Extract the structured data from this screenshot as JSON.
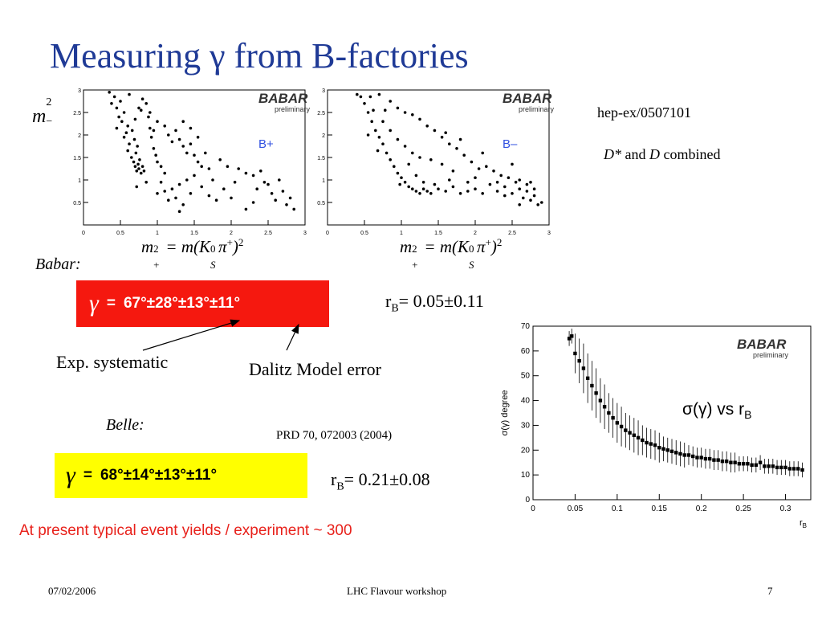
{
  "title": "Measuring γ from B-factories",
  "reference_babar": "hep-ex/0507101",
  "combined_note": {
    "d_star": "D*",
    "and": " and ",
    "d": "D",
    "rest": " combined"
  },
  "y_axis_label": {
    "m": "m",
    "sup": "2",
    "sub": "−"
  },
  "x_axis_formula": {
    "lhs": "m",
    "sup1": "2",
    "sub1": "+",
    "eq": " = m(",
    "k": "K",
    "ks_sup": "0",
    "ks_sub": "S",
    "pi": "π",
    "pi_sup": "+",
    "close": ")",
    "sup2": "2"
  },
  "babar": {
    "label": "Babar:",
    "gamma_symbol": "γ",
    "equals": "=",
    "result": "67°±28°±13°±11°",
    "rb_label": "r",
    "rb_sub": "B",
    "rb_value": "= 0.05±0.11",
    "box_color": "#f5180f"
  },
  "annotations": {
    "exp_systematic": "Exp. systematic",
    "dalitz_error": "Dalitz Model error"
  },
  "belle": {
    "label": "Belle:",
    "reference": "PRD 70, 072003 (2004)",
    "gamma_symbol": "γ",
    "equals": "=",
    "result": "68°±14°±13°±11°",
    "rb_label": "r",
    "rb_sub": "B",
    "rb_value": "= 0.21±0.08",
    "box_color": "#ffff00"
  },
  "yield_note": "At present typical event yields / experiment ~ 300",
  "footer": {
    "date": "07/02/2006",
    "venue": "LHC Flavour workshop",
    "page": "7"
  },
  "colors": {
    "title": "#1f3a96",
    "red_text": "#e8211b",
    "bplus_label": "#3050e0"
  },
  "chart_data": [
    {
      "type": "scatter",
      "logo": "BABAR",
      "logo_sub": "preliminary",
      "label": "B+",
      "xlim": [
        0,
        3
      ],
      "ylim": [
        0,
        3
      ],
      "xticks": [
        "0",
        "0.5",
        "1",
        "1.5",
        "2",
        "2.5",
        "3"
      ],
      "yticks": [
        "0.5",
        "1",
        "1.5",
        "2",
        "2.5",
        "3"
      ],
      "points": [
        [
          0.35,
          2.95
        ],
        [
          0.42,
          2.85
        ],
        [
          0.38,
          2.7
        ],
        [
          0.45,
          2.6
        ],
        [
          0.5,
          2.75
        ],
        [
          0.55,
          2.5
        ],
        [
          0.48,
          2.4
        ],
        [
          0.52,
          2.3
        ],
        [
          0.6,
          2.2
        ],
        [
          0.58,
          2.05
        ],
        [
          0.55,
          1.95
        ],
        [
          0.62,
          1.8
        ],
        [
          0.6,
          1.65
        ],
        [
          0.65,
          1.5
        ],
        [
          0.68,
          1.4
        ],
        [
          0.7,
          1.3
        ],
        [
          0.72,
          1.2
        ],
        [
          0.75,
          1.25
        ],
        [
          0.74,
          1.35
        ],
        [
          0.78,
          1.15
        ],
        [
          0.76,
          1.45
        ],
        [
          0.8,
          1.3
        ],
        [
          0.82,
          1.2
        ],
        [
          0.71,
          1.6
        ],
        [
          0.73,
          1.75
        ],
        [
          0.69,
          1.9
        ],
        [
          0.66,
          2.1
        ],
        [
          0.7,
          2.35
        ],
        [
          0.75,
          2.6
        ],
        [
          0.8,
          2.8
        ],
        [
          0.78,
          2.55
        ],
        [
          0.85,
          2.7
        ],
        [
          0.88,
          2.4
        ],
        [
          0.9,
          2.15
        ],
        [
          0.92,
          1.95
        ],
        [
          0.95,
          1.7
        ],
        [
          0.98,
          1.55
        ],
        [
          1.0,
          1.4
        ],
        [
          1.05,
          1.3
        ],
        [
          1.1,
          1.15
        ],
        [
          0.9,
          2.5
        ],
        [
          1.0,
          2.3
        ],
        [
          1.1,
          2.2
        ],
        [
          1.15,
          2.0
        ],
        [
          1.2,
          1.85
        ],
        [
          1.25,
          2.1
        ],
        [
          1.3,
          1.9
        ],
        [
          1.35,
          1.75
        ],
        [
          1.4,
          1.6
        ],
        [
          1.45,
          1.8
        ],
        [
          1.5,
          1.55
        ],
        [
          1.55,
          1.4
        ],
        [
          1.6,
          1.3
        ],
        [
          1.5,
          1.1
        ],
        [
          1.4,
          1.0
        ],
        [
          1.3,
          0.9
        ],
        [
          1.2,
          0.8
        ],
        [
          1.1,
          0.75
        ],
        [
          1.0,
          0.7
        ],
        [
          1.05,
          0.95
        ],
        [
          1.15,
          0.55
        ],
        [
          1.25,
          0.6
        ],
        [
          1.35,
          0.45
        ],
        [
          1.45,
          0.7
        ],
        [
          1.6,
          0.85
        ],
        [
          1.7,
          0.65
        ],
        [
          1.75,
          1.0
        ],
        [
          1.8,
          0.55
        ],
        [
          1.9,
          0.8
        ],
        [
          2.0,
          0.6
        ],
        [
          2.05,
          0.95
        ],
        [
          2.1,
          1.25
        ],
        [
          2.2,
          1.15
        ],
        [
          2.3,
          1.1
        ],
        [
          2.4,
          1.2
        ],
        [
          2.5,
          0.9
        ],
        [
          2.55,
          0.7
        ],
        [
          2.6,
          0.55
        ],
        [
          2.7,
          0.75
        ],
        [
          2.75,
          0.45
        ],
        [
          2.8,
          0.6
        ],
        [
          2.85,
          0.35
        ],
        [
          2.2,
          0.35
        ],
        [
          2.3,
          0.5
        ],
        [
          1.95,
          1.3
        ],
        [
          1.85,
          1.45
        ],
        [
          1.65,
          1.6
        ],
        [
          1.55,
          1.95
        ],
        [
          1.45,
          2.15
        ],
        [
          1.35,
          2.3
        ],
        [
          0.95,
          2.1
        ],
        [
          1.3,
          0.3
        ],
        [
          0.85,
          0.95
        ],
        [
          0.72,
          0.85
        ],
        [
          0.62,
          2.9
        ],
        [
          0.45,
          2.15
        ],
        [
          2.45,
          0.95
        ],
        [
          2.65,
          1.0
        ],
        [
          2.35,
          0.8
        ],
        [
          1.7,
          1.25
        ]
      ]
    },
    {
      "type": "scatter",
      "logo": "BABAR",
      "logo_sub": "preliminary",
      "label": "B–",
      "xlim": [
        0,
        3
      ],
      "ylim": [
        0,
        3
      ],
      "xticks": [
        "0",
        "0.5",
        "1",
        "1.5",
        "2",
        "2.5",
        "3"
      ],
      "yticks": [
        "0.5",
        "1",
        "1.5",
        "2",
        "2.5",
        "3"
      ],
      "points": [
        [
          0.4,
          2.9
        ],
        [
          0.45,
          2.85
        ],
        [
          0.5,
          2.7
        ],
        [
          0.55,
          2.5
        ],
        [
          0.6,
          2.3
        ],
        [
          0.65,
          2.1
        ],
        [
          0.7,
          1.95
        ],
        [
          0.75,
          1.8
        ],
        [
          0.8,
          1.6
        ],
        [
          0.85,
          1.45
        ],
        [
          0.9,
          1.3
        ],
        [
          0.95,
          1.15
        ],
        [
          1.0,
          1.05
        ],
        [
          1.05,
          0.95
        ],
        [
          1.1,
          0.85
        ],
        [
          1.15,
          0.8
        ],
        [
          1.2,
          0.75
        ],
        [
          1.25,
          0.7
        ],
        [
          1.3,
          0.8
        ],
        [
          1.35,
          0.75
        ],
        [
          1.4,
          0.7
        ],
        [
          1.5,
          0.8
        ],
        [
          1.6,
          0.75
        ],
        [
          1.7,
          0.85
        ],
        [
          1.8,
          0.7
        ],
        [
          1.9,
          0.75
        ],
        [
          2.0,
          0.8
        ],
        [
          2.1,
          0.7
        ],
        [
          2.2,
          0.9
        ],
        [
          2.3,
          0.75
        ],
        [
          2.4,
          0.65
        ],
        [
          2.5,
          0.7
        ],
        [
          2.6,
          0.8
        ],
        [
          2.65,
          0.6
        ],
        [
          2.7,
          0.75
        ],
        [
          2.75,
          0.55
        ],
        [
          2.8,
          0.65
        ],
        [
          2.85,
          0.45
        ],
        [
          2.9,
          0.5
        ],
        [
          2.55,
          0.95
        ],
        [
          2.45,
          1.05
        ],
        [
          2.35,
          1.1
        ],
        [
          2.25,
          1.2
        ],
        [
          2.15,
          1.3
        ],
        [
          2.05,
          1.25
        ],
        [
          1.95,
          1.4
        ],
        [
          1.85,
          1.55
        ],
        [
          1.75,
          1.7
        ],
        [
          1.65,
          1.8
        ],
        [
          1.55,
          1.95
        ],
        [
          1.45,
          2.1
        ],
        [
          1.35,
          2.2
        ],
        [
          1.25,
          2.35
        ],
        [
          1.15,
          2.45
        ],
        [
          1.05,
          2.5
        ],
        [
          0.95,
          2.6
        ],
        [
          0.85,
          2.75
        ],
        [
          0.7,
          2.9
        ],
        [
          0.58,
          2.85
        ],
        [
          0.75,
          2.3
        ],
        [
          0.85,
          2.1
        ],
        [
          0.95,
          1.9
        ],
        [
          1.05,
          1.75
        ],
        [
          1.15,
          1.6
        ],
        [
          1.25,
          1.5
        ],
        [
          1.4,
          1.45
        ],
        [
          1.55,
          1.35
        ],
        [
          1.7,
          1.2
        ],
        [
          2.0,
          1.05
        ],
        [
          2.3,
          0.95
        ],
        [
          2.6,
          1.0
        ],
        [
          1.2,
          1.1
        ],
        [
          1.1,
          1.35
        ],
        [
          0.98,
          0.9
        ],
        [
          1.3,
          0.95
        ],
        [
          1.45,
          0.9
        ],
        [
          1.65,
          1.0
        ],
        [
          1.9,
          0.95
        ],
        [
          2.4,
          0.85
        ],
        [
          2.7,
          0.9
        ],
        [
          2.8,
          0.8
        ],
        [
          0.62,
          2.55
        ],
        [
          0.78,
          2.55
        ],
        [
          1.6,
          2.05
        ],
        [
          1.8,
          1.9
        ],
        [
          2.1,
          1.6
        ],
        [
          2.5,
          1.35
        ],
        [
          0.55,
          2.0
        ],
        [
          0.68,
          1.65
        ],
        [
          2.6,
          0.45
        ],
        [
          2.75,
          0.95
        ]
      ]
    },
    {
      "type": "scatter",
      "logo": "BABAR",
      "logo_sub": "preliminary",
      "title": "σ(γ) vs r",
      "title_sub": "B",
      "xlabel": "r",
      "xlabel_sub": "B",
      "ylabel": "σ(γ) degree",
      "xlim": [
        0,
        0.33
      ],
      "ylim": [
        0,
        70
      ],
      "xticks": [
        "0",
        "0.05",
        "0.1",
        "0.15",
        "0.2",
        "0.25",
        "0.3"
      ],
      "yticks": [
        "0",
        "10",
        "20",
        "30",
        "40",
        "50",
        "60",
        "70"
      ],
      "points": [
        [
          0.043,
          65
        ],
        [
          0.046,
          66
        ],
        [
          0.05,
          59
        ],
        [
          0.055,
          56
        ],
        [
          0.06,
          53
        ],
        [
          0.065,
          49
        ],
        [
          0.07,
          46
        ],
        [
          0.075,
          43
        ],
        [
          0.08,
          40
        ],
        [
          0.085,
          37.5
        ],
        [
          0.09,
          35
        ],
        [
          0.095,
          33
        ],
        [
          0.1,
          31
        ],
        [
          0.105,
          29.5
        ],
        [
          0.11,
          28
        ],
        [
          0.115,
          27
        ],
        [
          0.12,
          26
        ],
        [
          0.125,
          25
        ],
        [
          0.13,
          24
        ],
        [
          0.135,
          23
        ],
        [
          0.14,
          22.5
        ],
        [
          0.145,
          22
        ],
        [
          0.15,
          21
        ],
        [
          0.155,
          20.5
        ],
        [
          0.16,
          20
        ],
        [
          0.165,
          19.5
        ],
        [
          0.17,
          19
        ],
        [
          0.175,
          18.5
        ],
        [
          0.18,
          18
        ],
        [
          0.185,
          18
        ],
        [
          0.19,
          17.5
        ],
        [
          0.195,
          17
        ],
        [
          0.2,
          17
        ],
        [
          0.205,
          16.5
        ],
        [
          0.21,
          16.5
        ],
        [
          0.215,
          16
        ],
        [
          0.22,
          16
        ],
        [
          0.225,
          15.5
        ],
        [
          0.23,
          15.5
        ],
        [
          0.235,
          15
        ],
        [
          0.24,
          15
        ],
        [
          0.245,
          14.5
        ],
        [
          0.25,
          14.5
        ],
        [
          0.255,
          14.5
        ],
        [
          0.26,
          14
        ],
        [
          0.265,
          14
        ],
        [
          0.27,
          15
        ],
        [
          0.275,
          13.5
        ],
        [
          0.28,
          13.5
        ],
        [
          0.285,
          13.5
        ],
        [
          0.29,
          13
        ],
        [
          0.295,
          13
        ],
        [
          0.3,
          13
        ],
        [
          0.305,
          12.5
        ],
        [
          0.31,
          12.5
        ],
        [
          0.315,
          12.5
        ],
        [
          0.32,
          12
        ]
      ],
      "errors": [
        3,
        3,
        8,
        9,
        10,
        10,
        10,
        10,
        9,
        9,
        8,
        8,
        8,
        8,
        7,
        7,
        7,
        7,
        6,
        6,
        6,
        6,
        6,
        5,
        5,
        5,
        5,
        5,
        5,
        4,
        4,
        4,
        4,
        4,
        4,
        4,
        4,
        4,
        4,
        4,
        4,
        3,
        3,
        3,
        3,
        3,
        3,
        3,
        3,
        3,
        3,
        3,
        3,
        3,
        3,
        3,
        3
      ]
    }
  ]
}
